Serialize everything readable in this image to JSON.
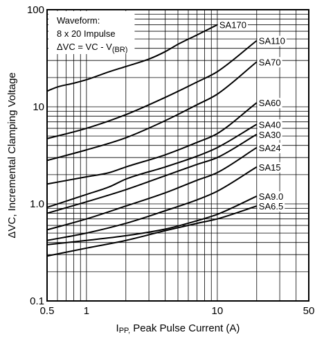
{
  "chart_data": {
    "type": "line",
    "title": "",
    "xlabel_prefix": "I",
    "xlabel_sub": "PP,",
    "xlabel_main": " Peak Pulse Current (A)",
    "ylabel": "ΔVC, Incremental Clamping Voltage",
    "x_scale": "log",
    "y_scale": "log",
    "xlim": [
      0.5,
      50
    ],
    "ylim": [
      0.1,
      100
    ],
    "grid": true,
    "x_tick_labels": [
      "0.5",
      "1",
      "10",
      "50"
    ],
    "y_tick_labels": [
      "0.1",
      "1.0",
      "10",
      "100"
    ],
    "x_tick_values": [
      0.5,
      1,
      10,
      50
    ],
    "y_tick_values": [
      0.1,
      1,
      10,
      100
    ],
    "annotation": {
      "line1": "Waveform:",
      "line2": "8 x 20 Impulse",
      "line3_main": "ΔVC = VC - V",
      "line3_sub": "(BR)"
    },
    "series": [
      {
        "name": "SA170",
        "x": [
          0.5,
          0.6,
          0.8,
          1.0,
          1.5,
          2.0,
          3.0,
          4.0,
          5.0,
          7.0,
          10.0
        ],
        "y": [
          14.5,
          16,
          17.5,
          19,
          23,
          26,
          31,
          37,
          44,
          55,
          70
        ]
      },
      {
        "name": "SA110",
        "x": [
          0.5,
          1.0,
          2.0,
          4.0,
          7.0,
          10.0,
          20.0
        ],
        "y": [
          4.7,
          6,
          8.3,
          12.5,
          18,
          23,
          48
        ]
      },
      {
        "name": "SA70",
        "x": [
          0.5,
          1.0,
          2.0,
          4.0,
          7.0,
          10.0,
          20.0
        ],
        "y": [
          2.8,
          3.6,
          4.8,
          7.2,
          10.5,
          13.5,
          29
        ]
      },
      {
        "name": "SA60",
        "x": [
          0.5,
          1.0,
          1.5,
          2.0,
          4.0,
          7.0,
          10.0,
          20.0
        ],
        "y": [
          1.6,
          1.9,
          2.1,
          2.4,
          3.2,
          4.3,
          5.3,
          11
        ]
      },
      {
        "name": "SA40",
        "x": [
          0.5,
          1.0,
          1.5,
          2.0,
          4.0,
          7.0,
          10.0,
          20.0
        ],
        "y": [
          0.92,
          1.25,
          1.5,
          1.8,
          2.4,
          3.1,
          3.8,
          6.6
        ]
      },
      {
        "name": "SA30",
        "x": [
          0.5,
          1.0,
          2.0,
          4.0,
          7.0,
          10.0,
          20.0
        ],
        "y": [
          0.8,
          1.05,
          1.4,
          1.95,
          2.55,
          3.0,
          5.2
        ]
      },
      {
        "name": "SA24",
        "x": [
          0.5,
          1.0,
          2.0,
          4.0,
          7.0,
          10.0,
          20.0
        ],
        "y": [
          0.54,
          0.7,
          0.95,
          1.3,
          1.75,
          2.1,
          3.8
        ]
      },
      {
        "name": "SA15",
        "x": [
          0.5,
          1.0,
          2.0,
          4.0,
          7.0,
          10.0,
          20.0
        ],
        "y": [
          0.42,
          0.5,
          0.63,
          0.85,
          1.1,
          1.35,
          2.4
        ]
      },
      {
        "name": "SA9.0",
        "x": [
          0.5,
          1.0,
          2.0,
          4.0,
          7.0,
          10.0,
          20.0
        ],
        "y": [
          0.38,
          0.42,
          0.47,
          0.55,
          0.67,
          0.78,
          1.2
        ]
      },
      {
        "name": "SA6.5",
        "x": [
          0.5,
          1.0,
          2.0,
          4.0,
          7.0,
          10.0,
          20.0
        ],
        "y": [
          0.29,
          0.35,
          0.42,
          0.53,
          0.63,
          0.7,
          0.95
        ]
      }
    ]
  }
}
